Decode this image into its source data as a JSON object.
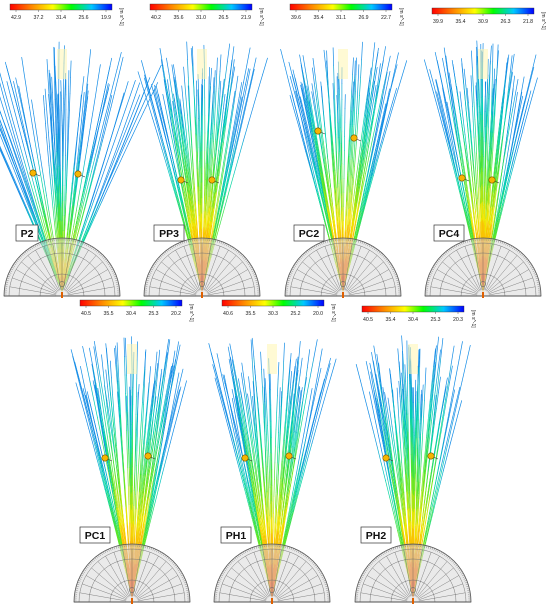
{
  "colors": {
    "scale": [
      "#ff0000",
      "#ff8c00",
      "#ffff00",
      "#00ff00",
      "#00c8ff",
      "#0000ff"
    ],
    "arc_fill": "#d8d8d8",
    "arc_stroke": "#555555",
    "marker_fill": "#f7b500"
  },
  "units": "[m s^-1]",
  "panels": [
    {
      "id": "P2",
      "label": "P2",
      "ticks": [
        "42.9",
        "37.2",
        "31.4",
        "25.6",
        "19.9"
      ],
      "spread": 24,
      "layer": "cool"
    },
    {
      "id": "PP3",
      "label": "PP3",
      "ticks": [
        "40.2",
        "35.6",
        "31.0",
        "26.5",
        "21.9"
      ],
      "spread": 15,
      "layer": "warm"
    },
    {
      "id": "PC2",
      "label": "PC2",
      "ticks": [
        "39.6",
        "35.4",
        "31.1",
        "26.9",
        "22.7"
      ],
      "spread": 15,
      "layer": "warm"
    },
    {
      "id": "PC4",
      "label": "PC4",
      "ticks": [
        "39.9",
        "35.4",
        "30.9",
        "26.3",
        "21.8"
      ],
      "spread": 13,
      "layer": "warm"
    },
    {
      "id": "PC1",
      "label": "PC1",
      "ticks": [
        "40.5",
        "35.5",
        "30.4",
        "25.3",
        "20.2"
      ],
      "spread": 14,
      "layer": "warm"
    },
    {
      "id": "PH1",
      "label": "PH1",
      "ticks": [
        "40.6",
        "35.5",
        "30.3",
        "25.2",
        "20.0"
      ],
      "spread": 14,
      "layer": "warm"
    },
    {
      "id": "PH2",
      "label": "PH2",
      "ticks": [
        "40.5",
        "35.4",
        "30.4",
        "25.3",
        "20.3"
      ],
      "spread": 13,
      "layer": "warm"
    }
  ]
}
